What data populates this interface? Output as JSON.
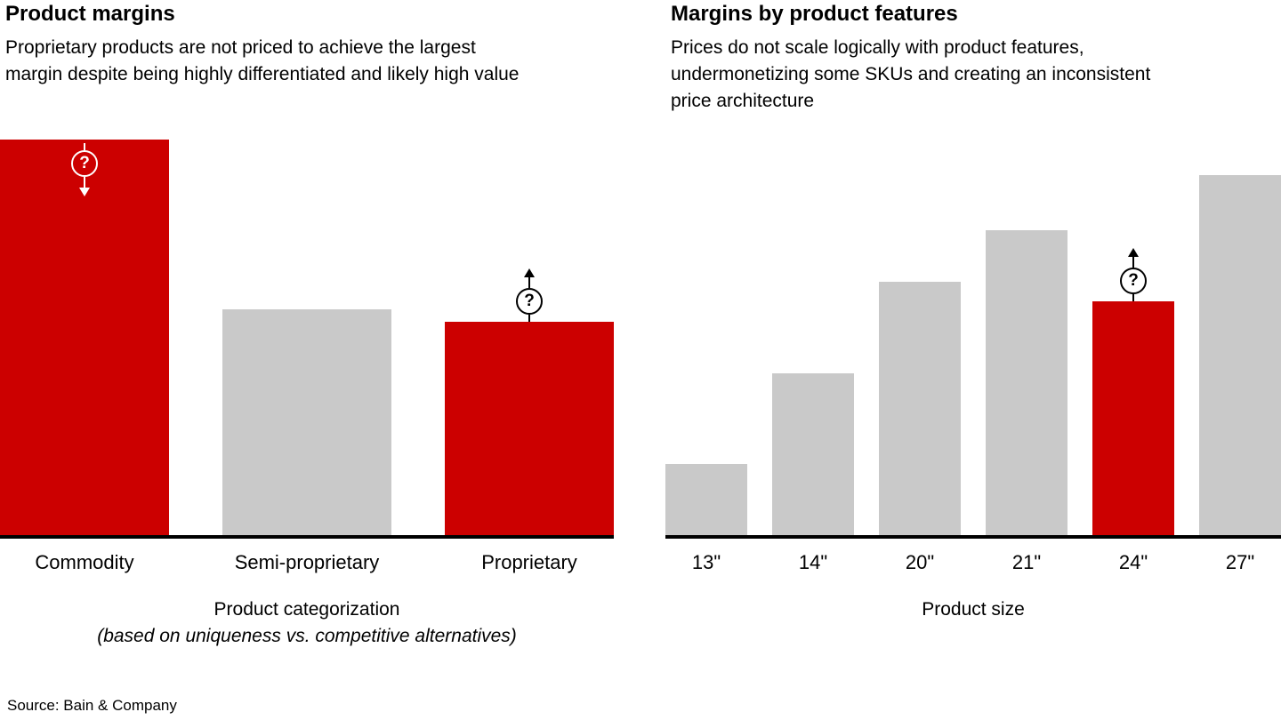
{
  "source": "Source: Bain & Company",
  "colors": {
    "red": "#cc0000",
    "gray": "#c9c9c9",
    "axis": "#000000"
  },
  "chart_data": [
    {
      "type": "bar",
      "title": "Product margins",
      "subtitle": "Proprietary products are not priced to achieve the largest\nmargin despite being highly differentiated and likely high value",
      "categories": [
        "Commodity",
        "Semi-proprietary",
        "Proprietary"
      ],
      "values": [
        100,
        57,
        54
      ],
      "bar_colors": [
        "red",
        "gray",
        "red"
      ],
      "xlabel": "Product categorization",
      "xlabel_note": "(based on uniqueness vs. competitive alternatives)",
      "ylim": [
        0,
        100
      ],
      "grid": false,
      "legend": false,
      "annotations": [
        {
          "category": "Commodity",
          "symbol": "?",
          "arrow": "down",
          "placement": "inside-top",
          "color": "#ffffff"
        },
        {
          "category": "Proprietary",
          "symbol": "?",
          "arrow": "up",
          "placement": "above",
          "color": "#000000"
        }
      ]
    },
    {
      "type": "bar",
      "title": "Margins by product features",
      "subtitle": "Prices do not scale logically with product features,\nundermonetizing some SKUs and creating an inconsistent\nprice architecture",
      "categories": [
        "13\"",
        "14\"",
        "20\"",
        "21\"",
        "24\"",
        "27\""
      ],
      "values": [
        18,
        41,
        64,
        77,
        59,
        91
      ],
      "bar_colors": [
        "gray",
        "gray",
        "gray",
        "gray",
        "red",
        "gray"
      ],
      "xlabel": "Product size",
      "ylim": [
        0,
        100
      ],
      "grid": false,
      "legend": false,
      "annotations": [
        {
          "category": "24\"",
          "symbol": "?",
          "arrow": "up",
          "placement": "above",
          "color": "#000000"
        }
      ]
    }
  ]
}
